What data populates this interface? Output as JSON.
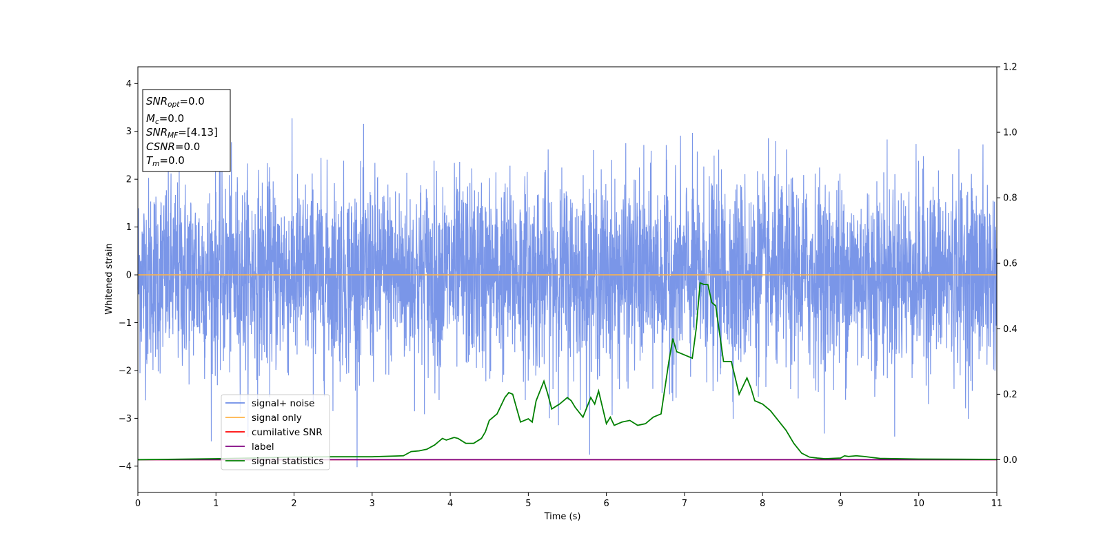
{
  "chart_data": {
    "type": "line",
    "title": "",
    "xlabel": "Time (s)",
    "ylabel": "Whitened strain",
    "xlim": [
      0,
      11
    ],
    "ylim": [
      -4.55,
      4.35
    ],
    "y2lim": [
      -0.1,
      1.2
    ],
    "x_ticks": [
      0,
      1,
      2,
      3,
      4,
      5,
      6,
      7,
      8,
      9,
      10,
      11
    ],
    "y_ticks": [
      -4,
      -3,
      -2,
      -1,
      0,
      1,
      2,
      3,
      4
    ],
    "y2_ticks": [
      0.0,
      0.2,
      0.4,
      0.6,
      0.8,
      1.0,
      1.2
    ],
    "y_tick_labels": [
      "−4",
      "−3",
      "−2",
      "−1",
      "0",
      "1",
      "2",
      "3",
      "4"
    ],
    "y2_tick_labels": [
      "0.0",
      "0.2",
      "0.4",
      "0.6",
      "0.8",
      "1.0",
      "1.2"
    ],
    "grid": false,
    "legend_position": "lower-left",
    "colors": {
      "signal_noise": "#6b8be6",
      "signal_only": "#ffb347",
      "cumulative_snr": "#ff0000",
      "label": "#800080",
      "signal_statistics": "#008000"
    },
    "annotation_box": {
      "lines": [
        {
          "base": "SNR",
          "sub": "opt",
          "rest": "=0.0"
        },
        {
          "base": "M",
          "sub": "c",
          "rest": "=0.0"
        },
        {
          "base": "SNR",
          "sub": "MF",
          "rest": "=[4.13]"
        },
        {
          "base": "CSNR",
          "sub": "",
          "rest": "=0.0"
        },
        {
          "base": "T",
          "sub": "m",
          "rest": "=0.0"
        }
      ]
    },
    "series": [
      {
        "name": "signal+ noise",
        "axis": "left",
        "kind": "noise",
        "n_samples": 4096,
        "amplitude_std": 1.0,
        "observed_max": 3.95,
        "observed_min": -4.15
      },
      {
        "name": "signal only",
        "axis": "left",
        "x": [
          0,
          11
        ],
        "y": [
          0,
          0
        ]
      },
      {
        "name": "cumilative SNR",
        "axis": "right",
        "x": [
          0,
          11
        ],
        "y": [
          0,
          0
        ]
      },
      {
        "name": "label",
        "axis": "right",
        "x": [
          0,
          11
        ],
        "y": [
          0,
          0
        ]
      },
      {
        "name": "signal statistics",
        "axis": "right",
        "x": [
          0.0,
          1.0,
          2.0,
          2.5,
          3.0,
          3.4,
          3.5,
          3.6,
          3.7,
          3.8,
          3.9,
          3.95,
          4.05,
          4.1,
          4.2,
          4.3,
          4.4,
          4.45,
          4.5,
          4.6,
          4.7,
          4.75,
          4.8,
          4.9,
          5.0,
          5.05,
          5.1,
          5.2,
          5.25,
          5.3,
          5.4,
          5.5,
          5.55,
          5.6,
          5.7,
          5.8,
          5.85,
          5.9,
          6.0,
          6.05,
          6.1,
          6.2,
          6.3,
          6.4,
          6.5,
          6.6,
          6.7,
          6.8,
          6.85,
          6.9,
          7.0,
          7.1,
          7.15,
          7.2,
          7.25,
          7.3,
          7.35,
          7.4,
          7.5,
          7.6,
          7.7,
          7.8,
          7.85,
          7.9,
          8.0,
          8.1,
          8.2,
          8.3,
          8.4,
          8.5,
          8.6,
          8.7,
          8.8,
          9.0,
          9.05,
          9.1,
          9.2,
          9.3,
          9.5,
          10.0,
          11.0
        ],
        "y": [
          0.0,
          0.003,
          0.008,
          0.009,
          0.009,
          0.012,
          0.025,
          0.027,
          0.032,
          0.045,
          0.065,
          0.06,
          0.068,
          0.065,
          0.05,
          0.05,
          0.065,
          0.085,
          0.12,
          0.14,
          0.19,
          0.205,
          0.2,
          0.115,
          0.125,
          0.115,
          0.18,
          0.24,
          0.2,
          0.155,
          0.17,
          0.19,
          0.18,
          0.16,
          0.13,
          0.19,
          0.17,
          0.21,
          0.11,
          0.13,
          0.105,
          0.115,
          0.12,
          0.105,
          0.11,
          0.13,
          0.14,
          0.3,
          0.37,
          0.33,
          0.32,
          0.31,
          0.4,
          0.54,
          0.535,
          0.535,
          0.48,
          0.47,
          0.3,
          0.3,
          0.2,
          0.25,
          0.22,
          0.18,
          0.17,
          0.15,
          0.12,
          0.09,
          0.05,
          0.02,
          0.008,
          0.005,
          0.003,
          0.005,
          0.012,
          0.01,
          0.012,
          0.01,
          0.004,
          0.002,
          0.001
        ]
      }
    ]
  }
}
